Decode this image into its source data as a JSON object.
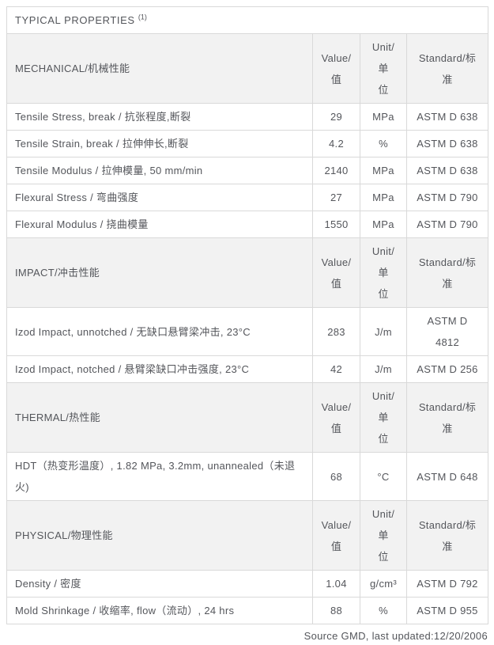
{
  "title": {
    "text": "TYPICAL PROPERTIES ",
    "sup": "(1)"
  },
  "columns": {
    "value": "Value/\n值",
    "unit": "Unit/单\n位",
    "standard": "Standard/标\n准"
  },
  "sections": [
    {
      "name": "MECHANICAL/机械性能",
      "rows": [
        {
          "property": "Tensile Stress, break / 抗张程度,断裂",
          "value": "29",
          "unit": "MPa",
          "standard": "ASTM D 638"
        },
        {
          "property": "Tensile Strain, break / 拉伸伸长,断裂",
          "value": "4.2",
          "unit": "%",
          "standard": "ASTM D 638"
        },
        {
          "property": "Tensile Modulus / 拉伸模量, 50 mm/min",
          "value": "2140",
          "unit": "MPa",
          "standard": "ASTM D 638"
        },
        {
          "property": "Flexural Stress / 弯曲强度",
          "value": "27",
          "unit": "MPa",
          "standard": "ASTM D 790"
        },
        {
          "property": "Flexural Modulus / 挠曲模量",
          "value": "1550",
          "unit": "MPa",
          "standard": "ASTM D 790"
        }
      ]
    },
    {
      "name": "IMPACT/冲击性能",
      "rows": [
        {
          "property": "Izod Impact, unnotched / 无缺口悬臂梁冲击, 23°C",
          "value": "283",
          "unit": "J/m",
          "standard": "ASTM D 4812"
        },
        {
          "property": "Izod Impact, notched / 悬臂梁缺口冲击强度, 23°C",
          "value": "42",
          "unit": "J/m",
          "standard": "ASTM D 256"
        }
      ]
    },
    {
      "name": "THERMAL/热性能",
      "rows": [
        {
          "property": "HDT（热变形温度）, 1.82 MPa, 3.2mm, unannealed（未退火)",
          "value": "68",
          "unit": "°C",
          "standard": "ASTM D 648"
        }
      ]
    },
    {
      "name": "PHYSICAL/物理性能",
      "rows": [
        {
          "property": "Density / 密度",
          "value": "1.04",
          "unit": "g/cm³",
          "standard": "ASTM D 792"
        },
        {
          "property": "Mold Shrinkage / 收缩率, flow（流动）, 24 hrs",
          "value": "88",
          "unit": "%",
          "standard": "ASTM D 955"
        }
      ]
    }
  ],
  "footer": "Source GMD, last updated:12/20/2006",
  "colors": {
    "text": "#54565b",
    "section_header_bg": "#f2f2f2",
    "border": "#d9d9d9",
    "background": "#ffffff"
  }
}
